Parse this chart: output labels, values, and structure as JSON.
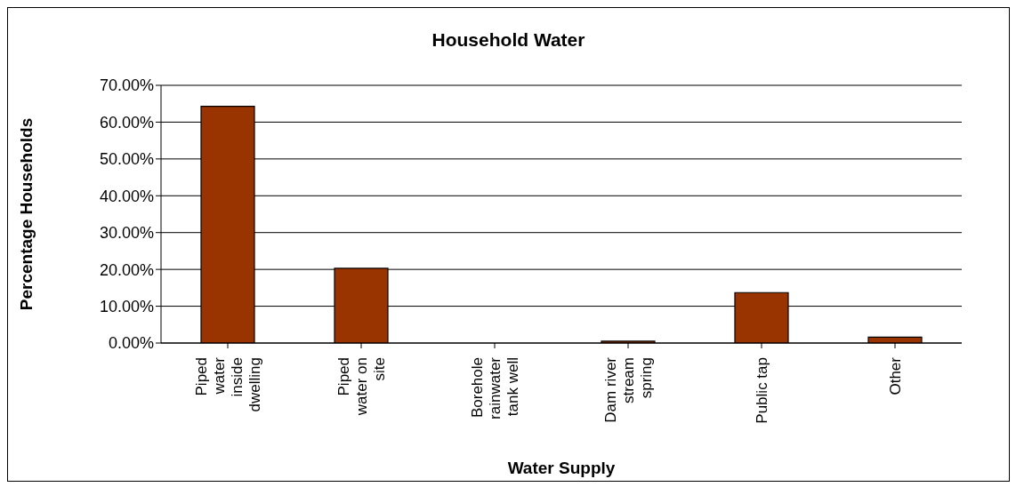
{
  "chart_data": {
    "type": "bar",
    "title": "Household Water",
    "xlabel": "Water Supply",
    "ylabel": "Percentage Households",
    "categories": [
      "Piped water inside dwelling",
      "Piped water on site",
      "Borehole rainwater tank well",
      "Dam river stream spring",
      "Public tap",
      "Other"
    ],
    "values": [
      64.3,
      20.3,
      0,
      0.5,
      13.7,
      1.6
    ],
    "color": "#993300",
    "ylim": [
      0,
      70
    ],
    "yticks": [
      {
        "value": 0,
        "label": "0.00%"
      },
      {
        "value": 10,
        "label": "10.00%"
      },
      {
        "value": 20,
        "label": "20.00%"
      },
      {
        "value": 30,
        "label": "30.00%"
      },
      {
        "value": 40,
        "label": "40.00%"
      },
      {
        "value": 50,
        "label": "50.00%"
      },
      {
        "value": 60,
        "label": "60.00%"
      },
      {
        "value": 70,
        "label": "70.00%"
      }
    ],
    "grid": "y",
    "legend": false
  }
}
